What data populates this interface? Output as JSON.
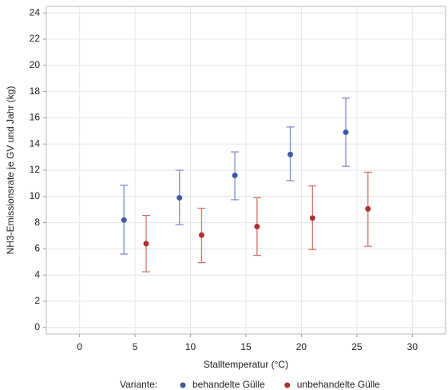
{
  "chart_data": {
    "type": "scatter",
    "x_label": "Stalltemperatur (°C)",
    "y_label": "NH3-Emissionsrate je GV und Jahr (kg)",
    "legend_title": "Variante:",
    "xlim": [
      -3,
      33
    ],
    "xticks": [
      0,
      5,
      10,
      15,
      20,
      25,
      30
    ],
    "ylim": [
      -0.5,
      24.5
    ],
    "yticks": [
      0,
      2,
      4,
      6,
      8,
      10,
      12,
      14,
      16,
      18,
      20,
      22,
      24
    ],
    "grid": true,
    "legend_position": "bottom",
    "series": [
      {
        "name": "behandelte Gülle",
        "color": "#3f57a6",
        "bar_color": "#7f8fcc",
        "x": [
          4,
          9,
          14,
          19,
          24
        ],
        "values": [
          8.2,
          9.9,
          11.6,
          13.2,
          14.9
        ],
        "lower": [
          5.6,
          7.85,
          9.75,
          11.2,
          12.3
        ],
        "upper": [
          10.85,
          12.0,
          13.4,
          15.3,
          17.5
        ]
      },
      {
        "name": "unbehandelte Gülle",
        "color": "#a83232",
        "bar_color": "#d0756b",
        "x": [
          6,
          11,
          16,
          21,
          26
        ],
        "values": [
          6.4,
          7.05,
          7.7,
          8.35,
          9.05
        ],
        "lower": [
          4.25,
          4.95,
          5.5,
          5.95,
          6.2
        ],
        "upper": [
          8.55,
          9.1,
          9.9,
          10.8,
          11.85
        ]
      }
    ]
  }
}
